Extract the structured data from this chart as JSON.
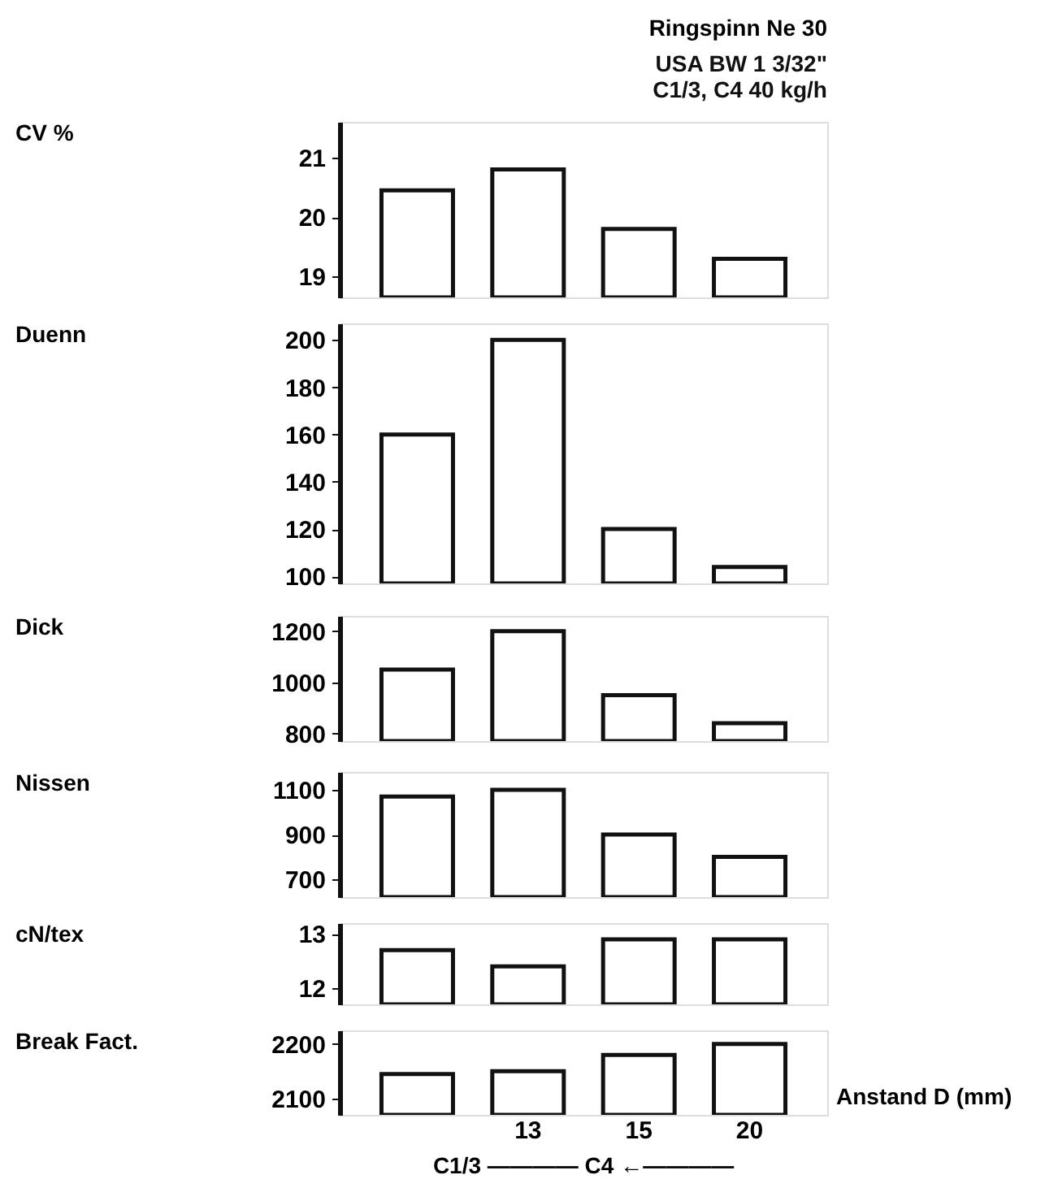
{
  "chart_data": [
    {
      "type": "bar",
      "title": "Ringspinn Ne 30",
      "subtitle": "USA BW  1 3/32\"",
      "annotations": [
        "C1/3, C4   40 kg/h"
      ],
      "ylabel": "CV %",
      "categories": [
        null,
        "13",
        "15",
        "20"
      ],
      "values": [
        20.45,
        20.8,
        19.8,
        19.3
      ],
      "colors": [
        "#ffffff",
        "#ffffff",
        "#ffffff",
        "#ffffff"
      ],
      "ylim": [
        18.65,
        21.6
      ],
      "yticks": [
        19,
        20,
        21
      ],
      "tick_labels": "y",
      "grid": false
    },
    {
      "type": "bar",
      "ylabel": "Duenn",
      "categories": [
        null,
        "13",
        "15",
        "20"
      ],
      "values": [
        160,
        200,
        120,
        104
      ],
      "colors": [
        "#ffffff",
        "#ffffff",
        "#ffffff",
        "#ffffff"
      ],
      "ylim": [
        97,
        207
      ],
      "yticks": [
        100,
        120,
        140,
        160,
        180,
        200
      ],
      "tick_labels": "y",
      "grid": false
    },
    {
      "type": "bar",
      "ylabel": "Dick",
      "categories": [
        null,
        "13",
        "15",
        "20"
      ],
      "values": [
        1050,
        1200,
        950,
        840
      ],
      "colors": [
        "#ffffff",
        "#ffffff",
        "#ffffff",
        "#ffffff"
      ],
      "ylim": [
        770,
        1260
      ],
      "yticks": [
        800,
        1000,
        1200
      ],
      "tick_labels": "y",
      "grid": false
    },
    {
      "type": "bar",
      "ylabel": "Nissen",
      "categories": [
        null,
        "13",
        "15",
        "20"
      ],
      "values": [
        1070,
        1100,
        900,
        800
      ],
      "colors": [
        "#ffffff",
        "#ffffff",
        "#ffffff",
        "#ffffff"
      ],
      "ylim": [
        620,
        1180
      ],
      "yticks": [
        700,
        900,
        1100
      ],
      "tick_labels": "y",
      "grid": false
    },
    {
      "type": "bar",
      "ylabel": "cN/tex",
      "categories": [
        null,
        "13",
        "15",
        "20"
      ],
      "values": [
        12.7,
        12.4,
        12.9,
        12.9
      ],
      "colors": [
        "#ffffff",
        "#ffffff",
        "#ffffff",
        "#ffffff"
      ],
      "ylim": [
        11.7,
        13.2
      ],
      "yticks": [
        12,
        13
      ],
      "tick_labels": "y",
      "grid": false
    },
    {
      "type": "bar",
      "ylabel": "Break Fact.",
      "xlabel": "Anstand D (mm)",
      "annotations": [
        "C1/3 ———— C4 ←————"
      ],
      "categories": [
        null,
        "13",
        "15",
        "20"
      ],
      "values": [
        2145,
        2150,
        2180,
        2200
      ],
      "colors": [
        "#ffffff",
        "#ffffff",
        "#ffffff",
        "#ffffff"
      ],
      "ylim": [
        2070,
        2225
      ],
      "yticks": [
        2100,
        2200
      ],
      "grid": false
    }
  ]
}
